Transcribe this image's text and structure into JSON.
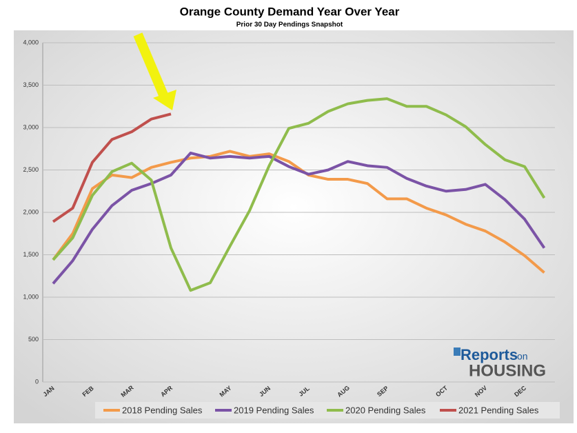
{
  "chart_data": {
    "type": "line",
    "title": "Orange County Demand Year Over Year",
    "subtitle": "Prior 30 Day Pendings Snapshot",
    "categories": [
      "JAN",
      null,
      "FEB",
      null,
      "MAR",
      null,
      "APR",
      null,
      null,
      "MAY",
      null,
      "JUN",
      null,
      "JUL",
      null,
      "AUG",
      null,
      "SEP",
      null,
      null,
      "OCT",
      null,
      "NOV",
      null,
      "DEC",
      null
    ],
    "series": [
      {
        "name": "2018 Pending Sales",
        "color": "#f39a4a",
        "values": [
          1440,
          1750,
          2280,
          2440,
          2410,
          2530,
          2590,
          2640,
          2660,
          2720,
          2660,
          2690,
          2600,
          2440,
          2390,
          2390,
          2340,
          2160,
          2160,
          2050,
          1970,
          1860,
          1780,
          1650,
          1490,
          1290
        ]
      },
      {
        "name": "2019 Pending Sales",
        "color": "#7b53a6",
        "values": [
          1160,
          1430,
          1800,
          2080,
          2260,
          2340,
          2440,
          2700,
          2640,
          2660,
          2640,
          2660,
          2540,
          2450,
          2500,
          2600,
          2550,
          2530,
          2400,
          2310,
          2250,
          2270,
          2330,
          2150,
          1920,
          1580
        ]
      },
      {
        "name": "2020 Pending Sales",
        "color": "#8fbc4c",
        "values": [
          1440,
          1700,
          2200,
          2480,
          2580,
          2380,
          1580,
          1080,
          1170,
          1600,
          2020,
          2550,
          2990,
          3050,
          3190,
          3280,
          3320,
          3340,
          3250,
          3250,
          3150,
          3010,
          2800,
          2620,
          2540,
          2170
        ]
      },
      {
        "name": "2021 Pending Sales",
        "color": "#c0504d",
        "values": [
          1890,
          2050,
          2590,
          2860,
          2950,
          3100,
          3160,
          null,
          null,
          null,
          null,
          null,
          null,
          null,
          null,
          null,
          null,
          null,
          null,
          null,
          null,
          null,
          null,
          null,
          null,
          null
        ]
      }
    ],
    "ylim": [
      0,
      4000
    ],
    "yticks": [
      0,
      500,
      {
        "value": 1000,
        "label": "1,000"
      },
      {
        "value": 1500,
        "label": "1,500"
      },
      {
        "value": 2000,
        "label": "2,000"
      },
      {
        "value": 2500,
        "label": "2,500"
      },
      {
        "value": 3000,
        "label": "3,000"
      },
      {
        "value": 3500,
        "label": "3,500"
      },
      {
        "value": 4000,
        "label": "4,000"
      }
    ],
    "grid": true,
    "legend": "bottom",
    "annotations": [
      "Reports",
      "on",
      "HOUSING"
    ]
  }
}
